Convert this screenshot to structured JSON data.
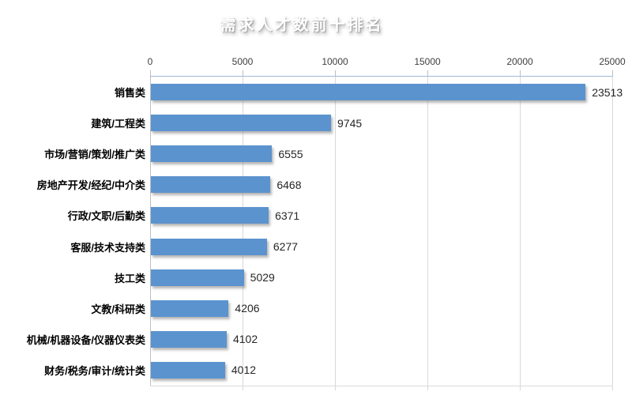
{
  "title": "需求人才数前十排名",
  "colors": {
    "bar": "#5B93CE",
    "banner_fill": "#5586BE",
    "banner_border": "#2E5277",
    "gridline": "#D9D9D9",
    "axis_line": "#BFBFBF",
    "top_axis_line": "#9FB9D6",
    "tick_text": "#3F3F3F",
    "value_text": "#262626"
  },
  "chart_data": {
    "type": "bar",
    "orientation": "horizontal",
    "title": "需求人才数前十排名",
    "categories": [
      "销售类",
      "建筑/工程类",
      "市场/营销/策划/推广类",
      "房地产开发/经纪/中介类",
      "行政/文职/后勤类",
      "客服/技术支持类",
      "技工类",
      "文教/科研类",
      "机械/机器设备/仪器仪表类",
      "财务/税务/审计/统计类"
    ],
    "values": [
      23513,
      9745,
      6555,
      6468,
      6371,
      6277,
      5029,
      4206,
      4102,
      4012
    ],
    "xlabel": "",
    "ylabel": "",
    "xlim": [
      0,
      25000
    ],
    "xticks": [
      0,
      5000,
      10000,
      15000,
      20000,
      25000
    ],
    "grid": true,
    "value_labels": true,
    "axis_position": "top",
    "legend": "none"
  }
}
